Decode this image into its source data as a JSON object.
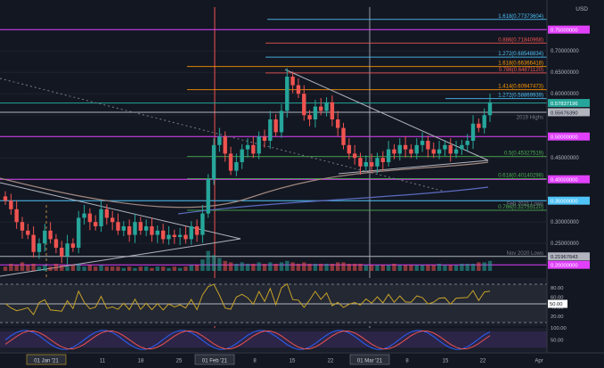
{
  "chart_data": {
    "type": "candlestick",
    "currency_label": "USD",
    "time_axis": {
      "ticks": [
        {
          "label": "01 Jan '21",
          "highlight": true
        },
        {
          "label": "11"
        },
        {
          "label": "18"
        },
        {
          "label": "25"
        },
        {
          "label": "01 Feb '21",
          "highlight": true
        },
        {
          "label": "8"
        },
        {
          "label": "15"
        },
        {
          "label": "22"
        },
        {
          "label": "01 Mar '21",
          "highlight": true
        },
        {
          "label": "8"
        },
        {
          "label": "15"
        },
        {
          "label": "22"
        },
        {
          "label": "Apr"
        }
      ]
    },
    "price_axis": {
      "range": [
        0.19,
        0.79
      ],
      "ticks": [
        "0.70000000",
        "0.65000000",
        "0.60000000",
        "0.45000000",
        "0.30000000",
        "0.25000000"
      ]
    },
    "price_markers": [
      {
        "value": 0.75,
        "label": "0.75000000",
        "color": "#e040fb",
        "style": "solid"
      },
      {
        "value": 0.57837196,
        "label": "0.57837196",
        "color": "#26a69a",
        "style": "solid"
      },
      {
        "value": 0.5567639,
        "label": "0.55676390",
        "color": "#b2b5be",
        "style": "solid"
      },
      {
        "value": 0.5,
        "label": "0.50000000",
        "color": "#e040fb",
        "style": "solid"
      },
      {
        "value": 0.4,
        "label": "0.40000000",
        "color": "#e040fb",
        "style": "solid"
      },
      {
        "value": 0.35,
        "label": "0.35000000",
        "color": "#4fc3f7",
        "style": "solid"
      },
      {
        "value": 0.21967643,
        "label": "0.21967643",
        "color": "#b2b5be",
        "style": "solid"
      },
      {
        "value": 0.2,
        "label": "0.20000000",
        "color": "#e040fb",
        "style": "solid"
      }
    ],
    "fib_levels": [
      {
        "value": 0.77373604,
        "label": "1.618(0.77373604)",
        "color": "#4fc3f7"
      },
      {
        "value": 0.71840968,
        "label": "0.886(0.71840968)",
        "color": "#ef5350"
      },
      {
        "value": 0.68548834,
        "label": "1.272(0.68548834)",
        "color": "#4fc3f7"
      },
      {
        "value": 0.66366418,
        "label": "1.618(0.66366418)",
        "color": "#ff9800"
      },
      {
        "value": 0.6487112,
        "label": "0.786(0.64871120)",
        "color": "#ef5350"
      },
      {
        "value": 0.60947473,
        "label": "1.414(0.60947473)",
        "color": "#ff9800"
      },
      {
        "value": 0.58869939,
        "label": "1.272(0.58869939)",
        "color": "#4fc3f7"
      },
      {
        "value": 0.45327519,
        "label": "0.5(0.45327519)",
        "color": "#4caf50"
      },
      {
        "value": 0.40140298,
        "label": "0.618(0.40140298)",
        "color": "#4caf50"
      },
      {
        "value": 0.3275512,
        "label": "0.786(0.32755120)",
        "color": "#4caf50"
      }
    ],
    "annotations": [
      {
        "text": "2019 Highs",
        "value": 0.545
      },
      {
        "text": "Feb 2021 Lows",
        "value": 0.343
      },
      {
        "text": "Nov 2020 Lows",
        "value": 0.227
      }
    ],
    "closes": [
      0.35,
      0.33,
      0.3,
      0.28,
      0.27,
      0.23,
      0.25,
      0.28,
      0.26,
      0.24,
      0.22,
      0.25,
      0.24,
      0.31,
      0.32,
      0.3,
      0.29,
      0.33,
      0.31,
      0.3,
      0.28,
      0.29,
      0.27,
      0.3,
      0.28,
      0.29,
      0.27,
      0.28,
      0.26,
      0.27,
      0.265,
      0.27,
      0.26,
      0.29,
      0.27,
      0.32,
      0.4,
      0.48,
      0.5,
      0.46,
      0.42,
      0.44,
      0.47,
      0.48,
      0.46,
      0.5,
      0.49,
      0.54,
      0.51,
      0.56,
      0.64,
      0.62,
      0.6,
      0.55,
      0.54,
      0.57,
      0.56,
      0.58,
      0.54,
      0.52,
      0.48,
      0.46,
      0.45,
      0.43,
      0.44,
      0.43,
      0.45,
      0.44,
      0.47,
      0.46,
      0.48,
      0.47,
      0.46,
      0.48,
      0.49,
      0.47,
      0.46,
      0.47,
      0.48,
      0.46,
      0.47,
      0.48,
      0.49,
      0.53,
      0.52,
      0.55,
      0.58
    ],
    "volume": [
      3,
      5,
      4,
      6,
      4,
      5,
      3,
      4,
      3,
      5,
      4,
      3,
      4,
      5,
      3,
      4,
      3,
      4,
      3,
      3,
      3,
      2,
      3,
      2,
      3,
      3,
      2,
      3,
      3,
      2,
      3,
      2,
      3,
      4,
      4,
      8,
      14,
      11,
      9,
      7,
      6,
      5,
      6,
      5,
      5,
      6,
      5,
      6,
      5,
      6,
      7,
      6,
      5,
      6,
      5,
      5,
      5,
      5,
      5,
      6,
      6,
      5,
      5,
      5,
      4,
      4,
      4,
      4,
      4,
      5,
      4,
      4,
      4,
      4,
      4,
      4,
      4,
      5,
      4,
      4,
      4,
      5,
      5,
      5,
      6,
      6,
      7
    ],
    "rsi_panel": {
      "labels": [
        "80.00",
        "60.00",
        "40.00",
        "20.00"
      ],
      "current": "50.00"
    },
    "stoch_panel": {
      "labels": [
        "100.00",
        "50.00"
      ]
    }
  }
}
